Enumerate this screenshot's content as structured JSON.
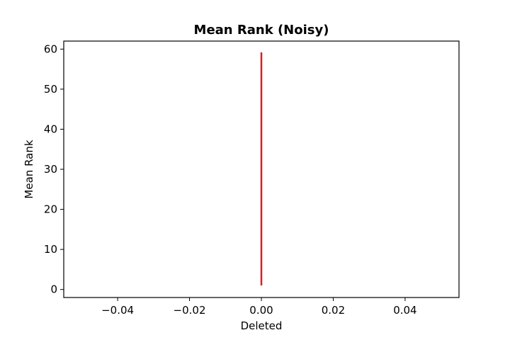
{
  "chart_data": {
    "type": "line",
    "title": "Mean Rank (Noisy)",
    "xlabel": "Deleted",
    "ylabel": "Mean Rank",
    "xlim": [
      -0.055,
      0.055
    ],
    "ylim": [
      -2,
      62
    ],
    "x_ticks": [
      -0.04,
      -0.02,
      0.0,
      0.02,
      0.04
    ],
    "x_tick_labels": [
      "−0.04",
      "−0.02",
      "0.00",
      "0.02",
      "0.04"
    ],
    "y_ticks": [
      0,
      10,
      20,
      30,
      40,
      50,
      60
    ],
    "y_tick_labels": [
      "0",
      "10",
      "20",
      "30",
      "40",
      "50",
      "60"
    ],
    "grid": false,
    "series": [
      {
        "color": "#e41a1c",
        "x": [
          0,
          0
        ],
        "y": [
          1,
          59.2
        ]
      }
    ]
  }
}
